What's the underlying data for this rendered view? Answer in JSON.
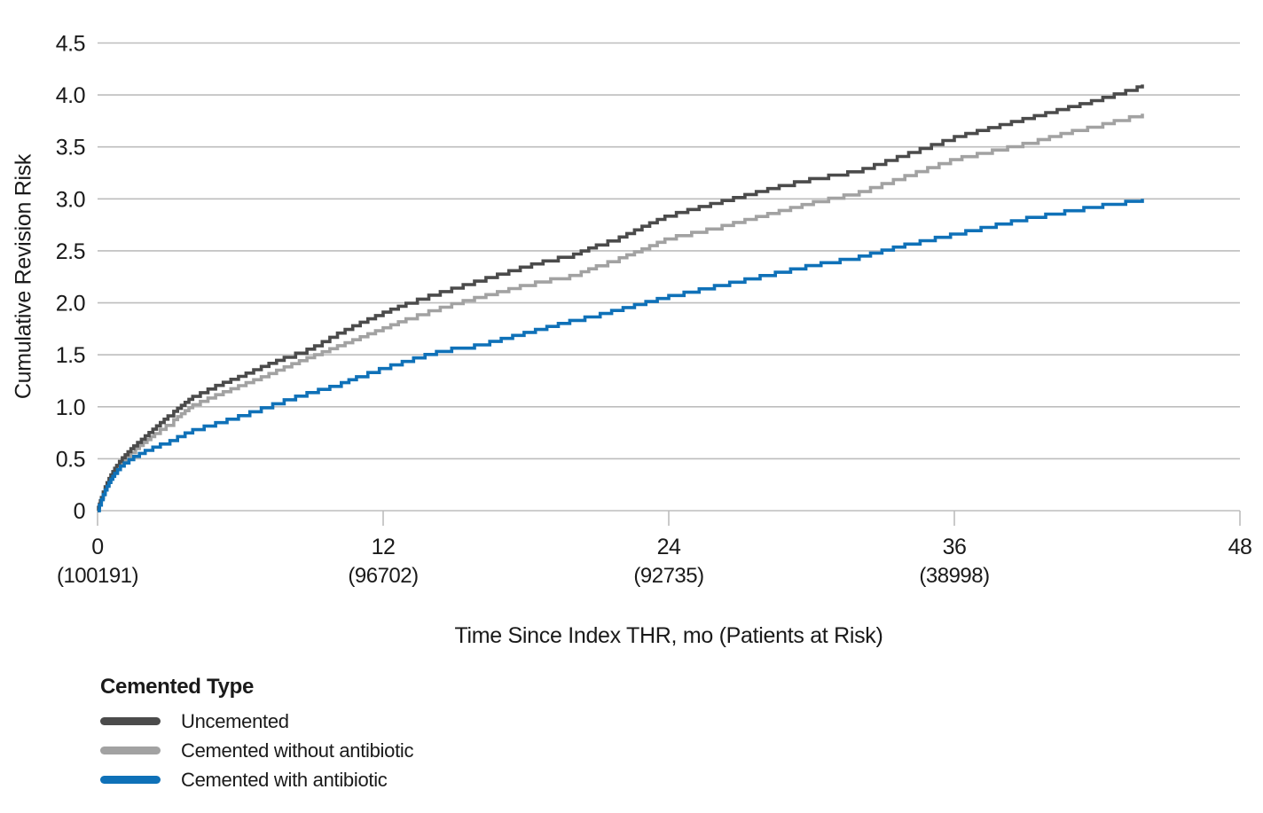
{
  "chart_data": {
    "type": "line",
    "subtype": "step-cumulative-incidence",
    "title": "",
    "xlabel": "Time Since Index THR, mo (Patients at Risk)",
    "ylabel": "Cumulative Revision Risk",
    "xlim": [
      0,
      48
    ],
    "ylim": [
      0,
      4.5
    ],
    "grid": "horizontal",
    "colors": {
      "grid": "#bdbdbd",
      "text": "#1a1a1a",
      "background": "#ffffff"
    },
    "x_ticks": [
      {
        "value": 0,
        "label": "0",
        "at_risk": "(100191)"
      },
      {
        "value": 12,
        "label": "12",
        "at_risk": "(96702)"
      },
      {
        "value": 24,
        "label": "24",
        "at_risk": "(92735)"
      },
      {
        "value": 36,
        "label": "36",
        "at_risk": "(38998)"
      },
      {
        "value": 48,
        "label": "48",
        "at_risk": ""
      }
    ],
    "y_ticks": [
      {
        "value": 0,
        "label": "0"
      },
      {
        "value": 0.5,
        "label": "0.5"
      },
      {
        "value": 1,
        "label": "1.0"
      },
      {
        "value": 1.5,
        "label": "1.5"
      },
      {
        "value": 2,
        "label": "2.0"
      },
      {
        "value": 2.5,
        "label": "2.5"
      },
      {
        "value": 3,
        "label": "3.0"
      },
      {
        "value": 3.5,
        "label": "3.5"
      },
      {
        "value": 4,
        "label": "4.0"
      },
      {
        "value": 4.5,
        "label": "4.5"
      }
    ],
    "legend": {
      "title": "Cemented Type",
      "position": "bottom-left"
    },
    "series": [
      {
        "name": "Uncemented",
        "color": "#4b4b4b",
        "points": [
          [
            0,
            0
          ],
          [
            0.15,
            0.12
          ],
          [
            0.3,
            0.22
          ],
          [
            0.5,
            0.32
          ],
          [
            0.75,
            0.42
          ],
          [
            1,
            0.5
          ],
          [
            1.5,
            0.62
          ],
          [
            2,
            0.72
          ],
          [
            2.5,
            0.82
          ],
          [
            3,
            0.92
          ],
          [
            3.5,
            1.01
          ],
          [
            4,
            1.1
          ],
          [
            5,
            1.21
          ],
          [
            6,
            1.3
          ],
          [
            7,
            1.4
          ],
          [
            8,
            1.49
          ],
          [
            9,
            1.57
          ],
          [
            10,
            1.7
          ],
          [
            11,
            1.81
          ],
          [
            12,
            1.91
          ],
          [
            13,
            2.0
          ],
          [
            14,
            2.08
          ],
          [
            15,
            2.15
          ],
          [
            16,
            2.22
          ],
          [
            17,
            2.29
          ],
          [
            18,
            2.36
          ],
          [
            19,
            2.42
          ],
          [
            20,
            2.47
          ],
          [
            21,
            2.56
          ],
          [
            22,
            2.64
          ],
          [
            23,
            2.75
          ],
          [
            24,
            2.85
          ],
          [
            25,
            2.91
          ],
          [
            26,
            2.97
          ],
          [
            27,
            3.03
          ],
          [
            28,
            3.09
          ],
          [
            29,
            3.15
          ],
          [
            30,
            3.2
          ],
          [
            31,
            3.24
          ],
          [
            32,
            3.28
          ],
          [
            33,
            3.36
          ],
          [
            34,
            3.44
          ],
          [
            35,
            3.52
          ],
          [
            36,
            3.6
          ],
          [
            37,
            3.66
          ],
          [
            38,
            3.72
          ],
          [
            39,
            3.78
          ],
          [
            40,
            3.84
          ],
          [
            41,
            3.9
          ],
          [
            42,
            3.96
          ],
          [
            43,
            4.03
          ],
          [
            43.6,
            4.07
          ],
          [
            43.9,
            4.1
          ]
        ]
      },
      {
        "name": "Cemented without antibiotic",
        "color": "#a2a2a2",
        "points": [
          [
            0,
            0
          ],
          [
            0.15,
            0.11
          ],
          [
            0.3,
            0.2
          ],
          [
            0.5,
            0.29
          ],
          [
            0.75,
            0.39
          ],
          [
            1,
            0.47
          ],
          [
            1.5,
            0.58
          ],
          [
            2,
            0.67
          ],
          [
            2.5,
            0.76
          ],
          [
            3,
            0.84
          ],
          [
            3.5,
            0.93
          ],
          [
            4,
            1.02
          ],
          [
            5,
            1.12
          ],
          [
            6,
            1.21
          ],
          [
            7,
            1.3
          ],
          [
            8,
            1.4
          ],
          [
            9,
            1.49
          ],
          [
            10,
            1.58
          ],
          [
            11,
            1.67
          ],
          [
            12,
            1.76
          ],
          [
            13,
            1.85
          ],
          [
            14,
            1.93
          ],
          [
            15,
            2.0
          ],
          [
            16,
            2.06
          ],
          [
            17,
            2.12
          ],
          [
            18,
            2.18
          ],
          [
            19,
            2.23
          ],
          [
            20,
            2.27
          ],
          [
            21,
            2.36
          ],
          [
            22,
            2.44
          ],
          [
            23,
            2.53
          ],
          [
            24,
            2.63
          ],
          [
            25,
            2.68
          ],
          [
            26,
            2.73
          ],
          [
            27,
            2.79
          ],
          [
            28,
            2.85
          ],
          [
            29,
            2.91
          ],
          [
            30,
            2.97
          ],
          [
            31,
            3.02
          ],
          [
            32,
            3.07
          ],
          [
            33,
            3.15
          ],
          [
            34,
            3.23
          ],
          [
            35,
            3.31
          ],
          [
            36,
            3.39
          ],
          [
            37,
            3.44
          ],
          [
            38,
            3.49
          ],
          [
            39,
            3.54
          ],
          [
            40,
            3.6
          ],
          [
            41,
            3.66
          ],
          [
            42,
            3.71
          ],
          [
            43,
            3.77
          ],
          [
            43.9,
            3.82
          ]
        ]
      },
      {
        "name": "Cemented with antibiotic",
        "color": "#0f71b8",
        "points": [
          [
            0,
            0
          ],
          [
            0.15,
            0.1
          ],
          [
            0.3,
            0.19
          ],
          [
            0.5,
            0.28
          ],
          [
            0.75,
            0.37
          ],
          [
            1,
            0.44
          ],
          [
            1.5,
            0.52
          ],
          [
            2,
            0.58
          ],
          [
            2.5,
            0.63
          ],
          [
            3,
            0.67
          ],
          [
            3.5,
            0.73
          ],
          [
            4,
            0.78
          ],
          [
            5,
            0.85
          ],
          [
            6,
            0.92
          ],
          [
            7,
            1.0
          ],
          [
            8,
            1.08
          ],
          [
            9,
            1.15
          ],
          [
            10,
            1.21
          ],
          [
            11,
            1.3
          ],
          [
            12,
            1.38
          ],
          [
            13,
            1.45
          ],
          [
            14,
            1.52
          ],
          [
            15,
            1.57
          ],
          [
            16,
            1.6
          ],
          [
            17,
            1.66
          ],
          [
            18,
            1.72
          ],
          [
            19,
            1.78
          ],
          [
            20,
            1.84
          ],
          [
            21,
            1.89
          ],
          [
            22,
            1.95
          ],
          [
            23,
            2.01
          ],
          [
            24,
            2.07
          ],
          [
            25,
            2.12
          ],
          [
            26,
            2.17
          ],
          [
            27,
            2.22
          ],
          [
            28,
            2.27
          ],
          [
            29,
            2.32
          ],
          [
            30,
            2.37
          ],
          [
            31,
            2.41
          ],
          [
            32,
            2.45
          ],
          [
            33,
            2.51
          ],
          [
            34,
            2.57
          ],
          [
            35,
            2.62
          ],
          [
            36,
            2.67
          ],
          [
            37,
            2.72
          ],
          [
            38,
            2.77
          ],
          [
            39,
            2.82
          ],
          [
            40,
            2.86
          ],
          [
            41,
            2.9
          ],
          [
            42,
            2.94
          ],
          [
            43,
            2.97
          ],
          [
            43.9,
            3.0
          ]
        ]
      }
    ]
  }
}
